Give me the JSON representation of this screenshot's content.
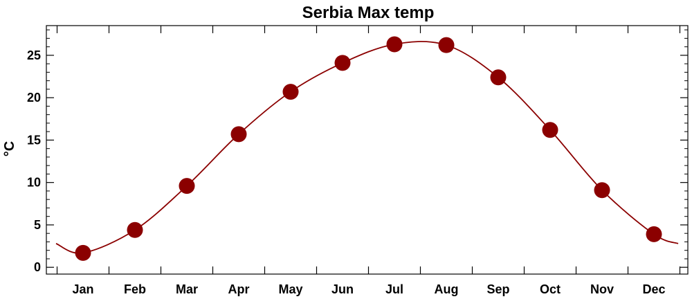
{
  "chart_data": {
    "type": "line",
    "title": "Serbia Max temp",
    "xlabel": "",
    "ylabel": "°C",
    "categories": [
      "Jan",
      "Feb",
      "Mar",
      "Apr",
      "May",
      "Jun",
      "Jul",
      "Aug",
      "Sep",
      "Oct",
      "Nov",
      "Dec"
    ],
    "series": [
      {
        "values": [
          1.7,
          4.4,
          9.6,
          15.7,
          20.7,
          24.1,
          26.3,
          26.2,
          22.4,
          16.2,
          9.1,
          3.9
        ]
      }
    ],
    "line_extension": {
      "left": 2.8,
      "right": 2.8
    },
    "ylim": [
      -0.8,
      28.5
    ],
    "yticks": [
      0,
      5,
      10,
      15,
      20,
      25
    ],
    "yticks_minor_step": 1,
    "grid": false,
    "legend": "none",
    "colors": {
      "line": "#8b0000",
      "marker": "#8b0000",
      "axes": "#000000"
    }
  }
}
